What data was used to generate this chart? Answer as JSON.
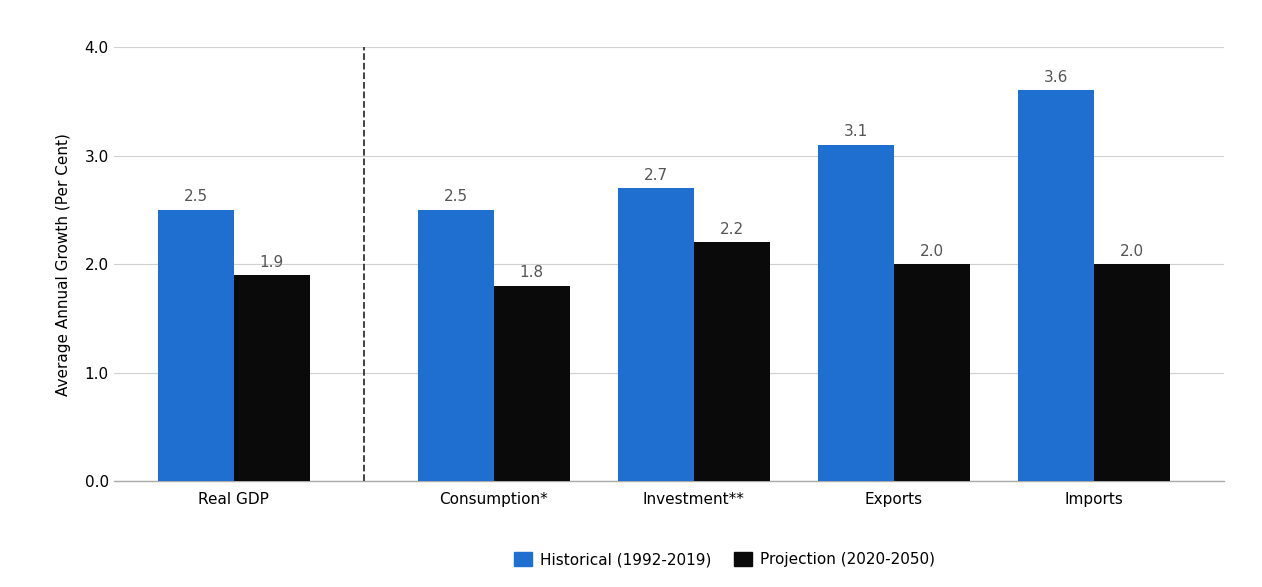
{
  "categories": [
    "Real GDP",
    "Consumption*",
    "Investment**",
    "Exports",
    "Imports"
  ],
  "historical": [
    2.5,
    2.5,
    2.7,
    3.1,
    3.6
  ],
  "projection": [
    1.9,
    1.8,
    2.2,
    2.0,
    2.0
  ],
  "historical_color": "#1F6FD1",
  "projection_color": "#0a0a0a",
  "ylabel": "Average Annual Growth (Per Cent)",
  "ylim": [
    0.0,
    4.0
  ],
  "yticks": [
    0.0,
    1.0,
    2.0,
    3.0,
    4.0
  ],
  "legend_labels": [
    "Historical (1992-2019)",
    "Projection (2020-2050)"
  ],
  "bar_width": 0.38,
  "label_fontsize": 11,
  "tick_fontsize": 11,
  "ylabel_fontsize": 11,
  "background_color": "#ffffff"
}
